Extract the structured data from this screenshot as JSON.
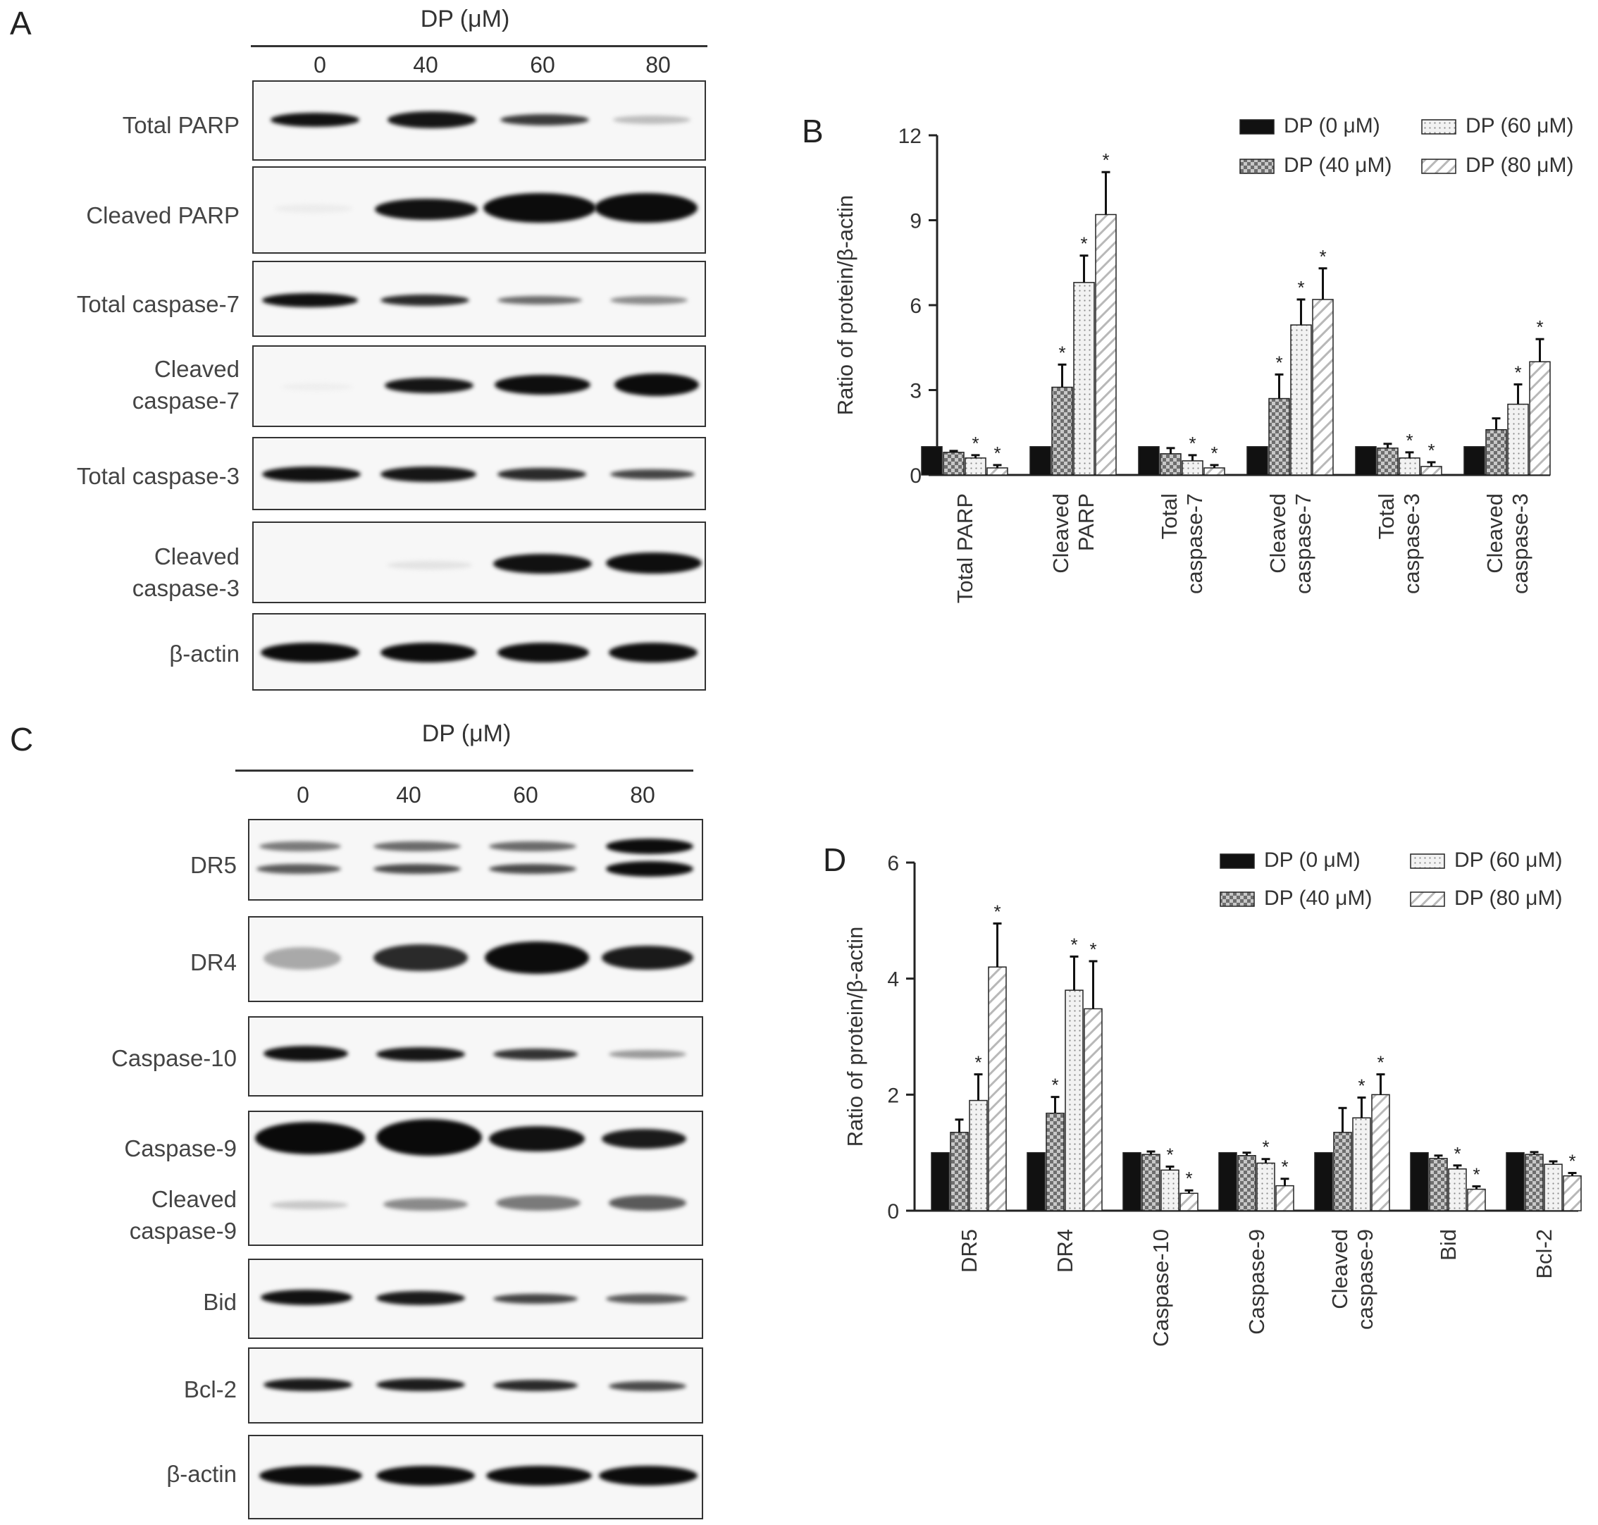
{
  "panel_letters": {
    "A": "A",
    "B": "B",
    "C": "C",
    "D": "D"
  },
  "blot_A": {
    "header": "DP (μM)",
    "lanes": [
      "0",
      "40",
      "60",
      "80"
    ],
    "rows": [
      {
        "label": "Total PARP"
      },
      {
        "label": "Cleaved PARP"
      },
      {
        "label": "Total caspase-7"
      },
      {
        "label": "Cleaved\ncaspase-7"
      },
      {
        "label": "Total caspase-3"
      },
      {
        "label": "Cleaved\ncaspase-3"
      },
      {
        "label": "β-actin"
      }
    ]
  },
  "blot_C": {
    "header": "DP (μM)",
    "lanes": [
      "0",
      "40",
      "60",
      "80"
    ],
    "rows": [
      {
        "label": "DR5"
      },
      {
        "label": "DR4"
      },
      {
        "label": "Caspase-10"
      },
      {
        "label": "Caspase-9"
      },
      {
        "label": "Cleaved\ncaspase-9"
      },
      {
        "label": "Bid"
      },
      {
        "label": "Bcl-2"
      },
      {
        "label": "β-actin"
      }
    ]
  },
  "chart_data": [
    {
      "panel": "B",
      "type": "bar",
      "ylabel": "Ratio of protein/β-actin",
      "ylim": [
        0,
        12
      ],
      "yticks": [
        0,
        3,
        6,
        9,
        12
      ],
      "categories": [
        "Total PARP",
        "Cleaved\nPARP",
        "Total\ncaspase-7",
        "Cleaved\ncaspase-7",
        "Total\ncaspase-3",
        "Cleaved\ncaspase-3"
      ],
      "legend_position": "top-right",
      "series": [
        {
          "name": "DP (0 μM)",
          "pattern": "solid",
          "values": [
            1,
            1,
            1,
            1,
            1,
            1
          ],
          "errors": [
            0,
            0,
            0,
            0,
            0,
            0
          ],
          "significant": [
            false,
            false,
            false,
            false,
            false,
            false
          ]
        },
        {
          "name": "DP (40 μM)",
          "pattern": "checker",
          "values": [
            0.8,
            3.1,
            0.75,
            2.7,
            0.95,
            1.6
          ],
          "errors": [
            0.05,
            0.8,
            0.2,
            0.85,
            0.15,
            0.4
          ],
          "significant": [
            false,
            true,
            false,
            true,
            false,
            false
          ]
        },
        {
          "name": "DP (60 μM)",
          "pattern": "dots",
          "values": [
            0.6,
            6.8,
            0.5,
            5.3,
            0.6,
            2.5
          ],
          "errors": [
            0.1,
            0.95,
            0.2,
            0.9,
            0.2,
            0.7
          ],
          "significant": [
            true,
            true,
            true,
            true,
            true,
            true
          ]
        },
        {
          "name": "DP (80 μM)",
          "pattern": "hatch",
          "values": [
            0.25,
            9.2,
            0.25,
            6.2,
            0.3,
            4.0
          ],
          "errors": [
            0.1,
            1.5,
            0.1,
            1.1,
            0.15,
            0.8
          ],
          "significant": [
            true,
            true,
            true,
            true,
            true,
            true
          ]
        }
      ],
      "significance_marker": "*"
    },
    {
      "panel": "D",
      "type": "bar",
      "ylabel": "Ratio of protein/β-actin",
      "ylim": [
        0,
        6
      ],
      "yticks": [
        0,
        2,
        4,
        6
      ],
      "categories": [
        "DR5",
        "DR4",
        "Caspase-10",
        "Caspase-9",
        "Cleaved\ncaspase-9",
        "Bid",
        "Bcl-2"
      ],
      "legend_position": "top-right",
      "series": [
        {
          "name": "DP (0 μM)",
          "pattern": "solid",
          "values": [
            1,
            1,
            1,
            1,
            1,
            1,
            1
          ],
          "errors": [
            0,
            0,
            0,
            0,
            0,
            0,
            0
          ],
          "significant": [
            false,
            false,
            false,
            false,
            false,
            false,
            false
          ]
        },
        {
          "name": "DP (40 μM)",
          "pattern": "checker",
          "values": [
            1.35,
            1.68,
            0.97,
            0.95,
            1.35,
            0.9,
            0.97
          ],
          "errors": [
            0.22,
            0.28,
            0.05,
            0.05,
            0.42,
            0.05,
            0.04
          ],
          "significant": [
            false,
            true,
            false,
            false,
            false,
            false,
            false
          ]
        },
        {
          "name": "DP (60 μM)",
          "pattern": "dots",
          "values": [
            1.9,
            3.8,
            0.7,
            0.82,
            1.6,
            0.72,
            0.8
          ],
          "errors": [
            0.45,
            0.58,
            0.06,
            0.07,
            0.35,
            0.06,
            0.05
          ],
          "significant": [
            true,
            true,
            true,
            true,
            true,
            true,
            false
          ]
        },
        {
          "name": "DP (80 μM)",
          "pattern": "hatch",
          "values": [
            4.2,
            3.48,
            0.3,
            0.43,
            2.0,
            0.37,
            0.6
          ],
          "errors": [
            0.75,
            0.82,
            0.05,
            0.12,
            0.35,
            0.05,
            0.05
          ],
          "significant": [
            true,
            true,
            true,
            true,
            true,
            true,
            true
          ]
        }
      ],
      "significance_marker": "*"
    }
  ]
}
